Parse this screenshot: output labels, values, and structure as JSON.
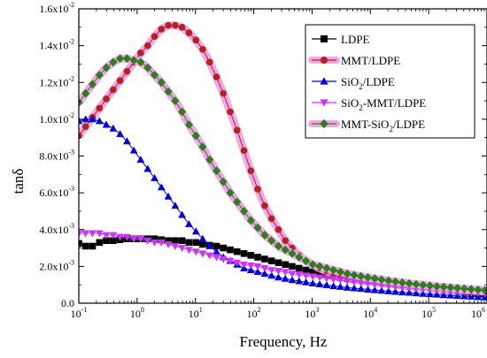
{
  "chart_data": {
    "type": "scatter",
    "x_scale": "log",
    "xlim": [
      0.1,
      1000000
    ],
    "ylim": [
      0,
      0.016
    ],
    "xlabel": "Frequency, Hz",
    "ylabel": "tanδ",
    "x_ticks": [
      {
        "base": "10",
        "exp": "-1"
      },
      {
        "base": "10",
        "exp": "0"
      },
      {
        "base": "10",
        "exp": "1"
      },
      {
        "base": "10",
        "exp": "2"
      },
      {
        "base": "10",
        "exp": "3"
      },
      {
        "base": "10",
        "exp": "4"
      },
      {
        "base": "10",
        "exp": "5"
      },
      {
        "base": "10",
        "exp": "6"
      }
    ],
    "y_ticks": [
      {
        "value": 0.0,
        "mant": "0.0",
        "exp": ""
      },
      {
        "value": 0.002,
        "mant": "2.0x10",
        "exp": "-3"
      },
      {
        "value": 0.004,
        "mant": "4.0x10",
        "exp": "-3"
      },
      {
        "value": 0.006,
        "mant": "6.0x10",
        "exp": "-3"
      },
      {
        "value": 0.008,
        "mant": "8.0x10",
        "exp": "-3"
      },
      {
        "value": 0.01,
        "mant": "1.0x10",
        "exp": "-2"
      },
      {
        "value": 0.012,
        "mant": "1.2x10",
        "exp": "-2"
      },
      {
        "value": 0.014,
        "mant": "1.4x10",
        "exp": "-2"
      },
      {
        "value": 0.016,
        "mant": "1.6x10",
        "exp": "-2"
      }
    ],
    "legend_position": "top-right",
    "grid": false,
    "x": [
      0.1,
      0.131,
      0.172,
      0.226,
      0.296,
      0.389,
      0.51,
      0.67,
      0.879,
      1.15,
      1.52,
      1.99,
      2.61,
      3.43,
      4.5,
      5.9,
      7.74,
      10.2,
      13.3,
      17.5,
      23,
      30.1,
      39.5,
      51.8,
      68,
      89.3,
      117,
      154,
      202,
      265,
      348,
      456,
      599,
      786,
      1030,
      1350,
      1780,
      2330,
      3060,
      4010,
      5270,
      6910,
      9070,
      11900,
      15600,
      20500,
      26900,
      35300,
      46400,
      60900,
      79900,
      105000,
      138000,
      181000,
      237000,
      311000,
      408000,
      536000,
      703000,
      923000
    ],
    "series": [
      {
        "name": "LDPE",
        "label_parts": [
          [
            "LDPE",
            ""
          ]
        ],
        "color": "#000000",
        "marker": "square",
        "values": [
          0.00325,
          0.0031,
          0.0031,
          0.0033,
          0.0034,
          0.0034,
          0.00345,
          0.0035,
          0.0035,
          0.0035,
          0.0035,
          0.0035,
          0.00345,
          0.0034,
          0.0034,
          0.0034,
          0.0033,
          0.0033,
          0.0032,
          0.00315,
          0.0031,
          0.003,
          0.0029,
          0.0028,
          0.0027,
          0.0026,
          0.0025,
          0.0024,
          0.0023,
          0.0022,
          0.0021,
          0.002,
          0.0019,
          0.0018,
          0.0017,
          0.0016,
          0.00155,
          0.0015,
          0.0014,
          0.00135,
          0.0013,
          0.00125,
          0.0012,
          0.00115,
          0.0011,
          0.00105,
          0.001,
          0.00095,
          0.0009,
          0.00087,
          0.00083,
          0.0008,
          0.00077,
          0.00073,
          0.0007,
          0.00066,
          0.00062,
          0.00058,
          0.00054,
          0.0005
        ]
      },
      {
        "name": "MMT/LDPE",
        "label_parts": [
          [
            "MMT/LDPE",
            ""
          ]
        ],
        "color": "#b22222",
        "marker": "circle",
        "halo": "#f2a6e6",
        "values": [
          0.0091,
          0.0096,
          0.0101,
          0.0106,
          0.0111,
          0.0116,
          0.0121,
          0.0126,
          0.0131,
          0.0136,
          0.014,
          0.0145,
          0.0149,
          0.0151,
          0.0151,
          0.015,
          0.0147,
          0.0143,
          0.0138,
          0.0131,
          0.0123,
          0.0114,
          0.0104,
          0.0094,
          0.0083,
          0.0072,
          0.0062,
          0.0053,
          0.0046,
          0.004,
          0.0034,
          0.003,
          0.0026,
          0.0023,
          0.0021,
          0.0019,
          0.00175,
          0.0016,
          0.0015,
          0.0014,
          0.00133,
          0.00126,
          0.0012,
          0.00115,
          0.0011,
          0.00106,
          0.00102,
          0.00098,
          0.00094,
          0.0009,
          0.00087,
          0.00084,
          0.00081,
          0.00078,
          0.00075,
          0.00072,
          0.0007,
          0.00068,
          0.00066,
          0.00064
        ]
      },
      {
        "name": "SiO2/LDPE",
        "label_parts": [
          [
            "SiO",
            ""
          ],
          [
            "2",
            "sub"
          ],
          [
            "/LDPE",
            ""
          ]
        ],
        "color": "#0000dd",
        "marker": "triangle-up",
        "values": [
          0.0099,
          0.01,
          0.01,
          0.0099,
          0.0097,
          0.0095,
          0.0092,
          0.0088,
          0.0083,
          0.0078,
          0.0073,
          0.0068,
          0.0063,
          0.0058,
          0.0053,
          0.0048,
          0.0043,
          0.0039,
          0.0035,
          0.0031,
          0.0028,
          0.0025,
          0.0023,
          0.0021,
          0.0019,
          0.0018,
          0.0017,
          0.0016,
          0.0015,
          0.0014,
          0.00133,
          0.00126,
          0.0012,
          0.00114,
          0.00108,
          0.00103,
          0.00098,
          0.00093,
          0.00089,
          0.00085,
          0.00081,
          0.00078,
          0.00074,
          0.00071,
          0.00068,
          0.00065,
          0.00062,
          0.00059,
          0.00057,
          0.00054,
          0.00051,
          0.00049,
          0.00047,
          0.00044,
          0.00042,
          0.0004,
          0.00038,
          0.00036,
          0.00034,
          0.00032
        ]
      },
      {
        "name": "SiO2-MMT/LDPE",
        "label_parts": [
          [
            "SiO",
            ""
          ],
          [
            "2",
            "sub"
          ],
          [
            "-MMT/LDPE",
            ""
          ]
        ],
        "color": "#cc33ff",
        "marker": "triangle-down",
        "values": [
          0.0038,
          0.0038,
          0.0038,
          0.0038,
          0.0037,
          0.0037,
          0.0036,
          0.0036,
          0.0035,
          0.0035,
          0.0034,
          0.0033,
          0.0033,
          0.0032,
          0.0031,
          0.003,
          0.0029,
          0.0028,
          0.0027,
          0.0026,
          0.0025,
          0.0024,
          0.0023,
          0.0022,
          0.0021,
          0.00205,
          0.002,
          0.0019,
          0.0018,
          0.00175,
          0.0017,
          0.0016,
          0.00155,
          0.0015,
          0.00145,
          0.0014,
          0.00135,
          0.0013,
          0.00125,
          0.0012,
          0.00115,
          0.0011,
          0.00106,
          0.00102,
          0.00098,
          0.00094,
          0.0009,
          0.00086,
          0.00083,
          0.0008,
          0.00077,
          0.00074,
          0.00071,
          0.00068,
          0.00065,
          0.00062,
          0.0006,
          0.00057,
          0.00055,
          0.00052
        ]
      },
      {
        "name": "MMT-SiO2/LDPE",
        "label_parts": [
          [
            "MMT-SiO",
            ""
          ],
          [
            "2",
            "sub"
          ],
          [
            "/LDPE",
            ""
          ]
        ],
        "color": "#2e7d1e",
        "marker": "diamond",
        "halo": "#f2a6e6",
        "values": [
          0.0109,
          0.0114,
          0.0119,
          0.0124,
          0.0128,
          0.0131,
          0.0133,
          0.0133,
          0.0132,
          0.0131,
          0.0128,
          0.0124,
          0.012,
          0.0115,
          0.011,
          0.0104,
          0.0097,
          0.0091,
          0.0085,
          0.0078,
          0.0072,
          0.0066,
          0.006,
          0.0055,
          0.005,
          0.0045,
          0.0041,
          0.0037,
          0.0034,
          0.0031,
          0.0029,
          0.0027,
          0.0025,
          0.0023,
          0.0021,
          0.002,
          0.0019,
          0.0018,
          0.0017,
          0.0016,
          0.00153,
          0.00146,
          0.0014,
          0.00134,
          0.00128,
          0.00122,
          0.00117,
          0.00112,
          0.00107,
          0.00103,
          0.00099,
          0.00095,
          0.00091,
          0.00088,
          0.00085,
          0.00082,
          0.00079,
          0.00076,
          0.00073,
          0.0007
        ]
      }
    ]
  }
}
